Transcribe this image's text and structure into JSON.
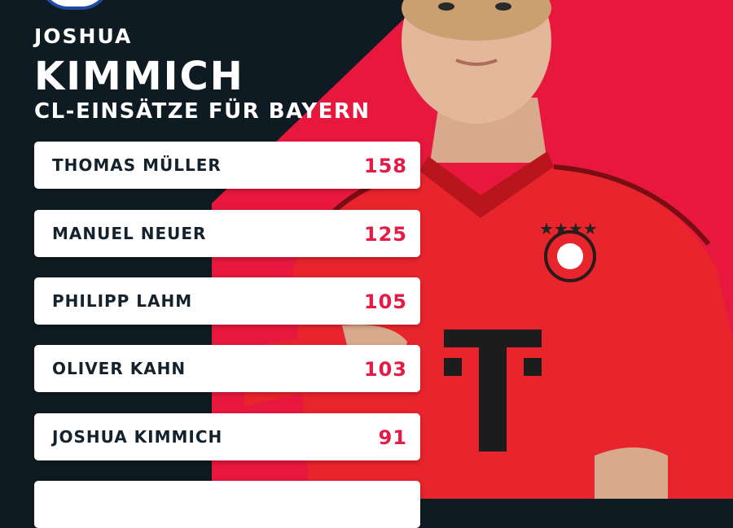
{
  "header": {
    "first_name": "JOSHUA",
    "last_name": "KIMMICH",
    "subtitle": "CL-EINSÄTZE FÜR BAYERN"
  },
  "ranking": [
    {
      "name": "THOMAS MÜLLER",
      "value": "158"
    },
    {
      "name": "MANUEL NEUER",
      "value": "125"
    },
    {
      "name": "PHILIPP LAHM",
      "value": "105"
    },
    {
      "name": "OLIVER KAHN",
      "value": "103"
    },
    {
      "name": "JOSHUA KIMMICH",
      "value": "91"
    },
    {
      "name": "",
      "value": ""
    }
  ],
  "colors": {
    "background": "#0f1b22",
    "accent_red": "#e31b46",
    "card": "#ffffff",
    "text_dark": "#13222c"
  },
  "icons": {
    "logo": "club-logo-icon",
    "shirt_sponsor": "telekom-t-icon",
    "crest": "fc-bayern-crest-icon"
  }
}
